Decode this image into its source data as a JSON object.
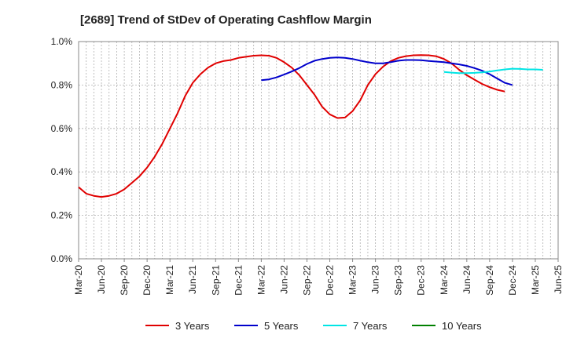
{
  "chart_data": {
    "type": "line",
    "title": "[2689]  Trend of StDev of Operating Cashflow Margin",
    "xlabel": "",
    "ylabel": "",
    "ylim": [
      0,
      1.0
    ],
    "y_ticks": [
      "0.0%",
      "0.2%",
      "0.4%",
      "0.6%",
      "0.8%",
      "1.0%"
    ],
    "x_ticks": [
      "Mar-20",
      "Jun-20",
      "Sep-20",
      "Dec-20",
      "Mar-21",
      "Jun-21",
      "Sep-21",
      "Dec-21",
      "Mar-22",
      "Jun-22",
      "Sep-22",
      "Dec-22",
      "Mar-23",
      "Jun-23",
      "Sep-23",
      "Dec-23",
      "Mar-24",
      "Jun-24",
      "Sep-24",
      "Dec-24",
      "Mar-25",
      "Jun-25"
    ],
    "grid": true,
    "legend_position": "bottom",
    "series": [
      {
        "name": "3 Years",
        "color": "#e00000",
        "values": [
          [
            "Mar-20",
            0.33
          ],
          [
            "Apr-20",
            0.3
          ],
          [
            "May-20",
            0.29
          ],
          [
            "Jun-20",
            0.285
          ],
          [
            "Jul-20",
            0.29
          ],
          [
            "Aug-20",
            0.3
          ],
          [
            "Sep-20",
            0.32
          ],
          [
            "Oct-20",
            0.35
          ],
          [
            "Nov-20",
            0.38
          ],
          [
            "Dec-20",
            0.42
          ],
          [
            "Jan-21",
            0.47
          ],
          [
            "Feb-21",
            0.53
          ],
          [
            "Mar-21",
            0.6
          ],
          [
            "Apr-21",
            0.67
          ],
          [
            "May-21",
            0.75
          ],
          [
            "Jun-21",
            0.81
          ],
          [
            "Jul-21",
            0.85
          ],
          [
            "Aug-21",
            0.88
          ],
          [
            "Sep-21",
            0.9
          ],
          [
            "Oct-21",
            0.91
          ],
          [
            "Nov-21",
            0.915
          ],
          [
            "Dec-21",
            0.925
          ],
          [
            "Jan-22",
            0.93
          ],
          [
            "Feb-22",
            0.935
          ],
          [
            "Mar-22",
            0.937
          ],
          [
            "Apr-22",
            0.935
          ],
          [
            "May-22",
            0.925
          ],
          [
            "Jun-22",
            0.905
          ],
          [
            "Jul-22",
            0.88
          ],
          [
            "Aug-22",
            0.845
          ],
          [
            "Sep-22",
            0.8
          ],
          [
            "Oct-22",
            0.755
          ],
          [
            "Nov-22",
            0.7
          ],
          [
            "Dec-22",
            0.665
          ],
          [
            "Jan-23",
            0.648
          ],
          [
            "Feb-23",
            0.65
          ],
          [
            "Mar-23",
            0.68
          ],
          [
            "Apr-23",
            0.73
          ],
          [
            "May-23",
            0.8
          ],
          [
            "Jun-23",
            0.85
          ],
          [
            "Jul-23",
            0.885
          ],
          [
            "Aug-23",
            0.91
          ],
          [
            "Sep-23",
            0.925
          ],
          [
            "Oct-23",
            0.933
          ],
          [
            "Nov-23",
            0.937
          ],
          [
            "Dec-23",
            0.938
          ],
          [
            "Jan-24",
            0.937
          ],
          [
            "Feb-24",
            0.932
          ],
          [
            "Mar-24",
            0.92
          ],
          [
            "Apr-24",
            0.9
          ],
          [
            "May-24",
            0.87
          ],
          [
            "Jun-24",
            0.845
          ],
          [
            "Jul-24",
            0.825
          ],
          [
            "Aug-24",
            0.805
          ],
          [
            "Sep-24",
            0.79
          ],
          [
            "Oct-24",
            0.778
          ],
          [
            "Nov-24",
            0.77
          ]
        ]
      },
      {
        "name": "5 Years",
        "color": "#0000cc",
        "values": [
          [
            "Mar-22",
            0.822
          ],
          [
            "Apr-22",
            0.826
          ],
          [
            "May-22",
            0.835
          ],
          [
            "Jun-22",
            0.848
          ],
          [
            "Jul-22",
            0.862
          ],
          [
            "Aug-22",
            0.878
          ],
          [
            "Sep-22",
            0.897
          ],
          [
            "Oct-22",
            0.912
          ],
          [
            "Nov-22",
            0.92
          ],
          [
            "Dec-22",
            0.925
          ],
          [
            "Jan-23",
            0.927
          ],
          [
            "Feb-23",
            0.925
          ],
          [
            "Mar-23",
            0.92
          ],
          [
            "Apr-23",
            0.912
          ],
          [
            "May-23",
            0.905
          ],
          [
            "Jun-23",
            0.9
          ],
          [
            "Jul-23",
            0.9
          ],
          [
            "Aug-23",
            0.905
          ],
          [
            "Sep-23",
            0.912
          ],
          [
            "Oct-23",
            0.915
          ],
          [
            "Nov-23",
            0.915
          ],
          [
            "Dec-23",
            0.914
          ],
          [
            "Jan-24",
            0.911
          ],
          [
            "Feb-24",
            0.908
          ],
          [
            "Mar-24",
            0.905
          ],
          [
            "Apr-24",
            0.9
          ],
          [
            "May-24",
            0.895
          ],
          [
            "Jun-24",
            0.888
          ],
          [
            "Jul-24",
            0.878
          ],
          [
            "Aug-24",
            0.866
          ],
          [
            "Sep-24",
            0.85
          ],
          [
            "Oct-24",
            0.83
          ],
          [
            "Nov-24",
            0.81
          ],
          [
            "Dec-24",
            0.8
          ]
        ]
      },
      {
        "name": "7 Years",
        "color": "#00e5e5",
        "values": [
          [
            "Mar-24",
            0.86
          ],
          [
            "Apr-24",
            0.857
          ],
          [
            "May-24",
            0.855
          ],
          [
            "Jun-24",
            0.855
          ],
          [
            "Jul-24",
            0.856
          ],
          [
            "Aug-24",
            0.858
          ],
          [
            "Sep-24",
            0.862
          ],
          [
            "Oct-24",
            0.867
          ],
          [
            "Nov-24",
            0.872
          ],
          [
            "Dec-24",
            0.875
          ],
          [
            "Jan-25",
            0.874
          ],
          [
            "Feb-25",
            0.872
          ],
          [
            "Mar-25",
            0.872
          ],
          [
            "Apr-25",
            0.87
          ]
        ]
      },
      {
        "name": "10 Years",
        "color": "#008000",
        "values": []
      }
    ]
  }
}
